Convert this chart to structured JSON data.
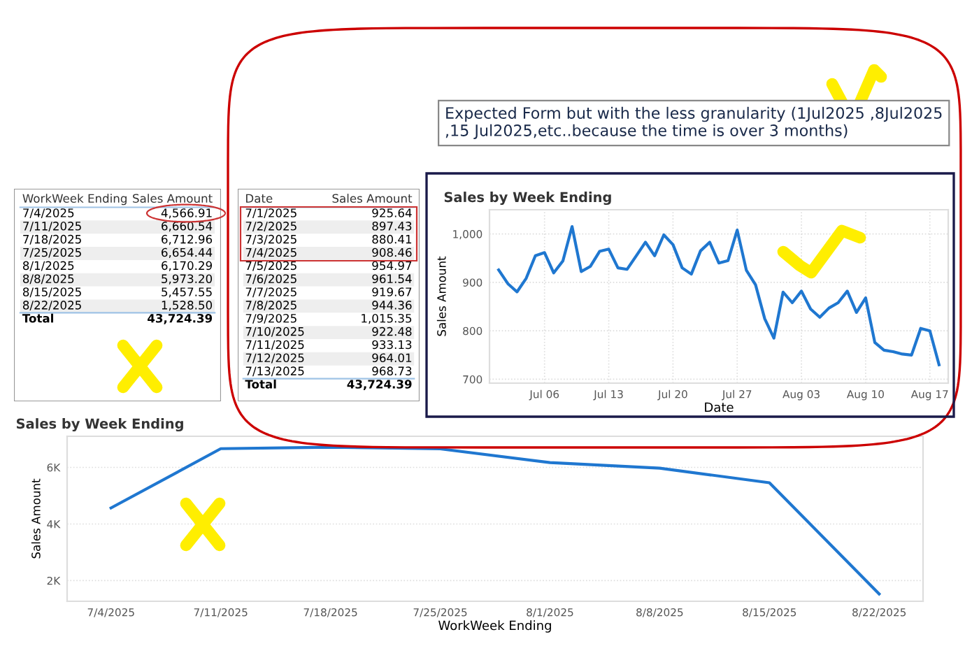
{
  "chart_data": [
    {
      "type": "other",
      "xlabel": "WorkWeek Ending",
      "ylabel": "Sales Amount",
      "categories": [
        "7/4/2025",
        "7/11/2025",
        "7/18/2025",
        "7/25/2025",
        "8/1/2025",
        "8/8/2025",
        "8/15/2025",
        "8/22/2025"
      ],
      "value_labels": [
        "4,566.91",
        "6,660.54",
        "6,712.96",
        "6,654.44",
        "6,170.29",
        "5,973.20",
        "5,457.55",
        "1,528.50"
      ],
      "totals": [
        "Total",
        "43,724.39"
      ]
    },
    {
      "type": "other",
      "xlabel": "Date",
      "ylabel": "Sales Amount",
      "categories": [
        "7/1/2025",
        "7/2/2025",
        "7/3/2025",
        "7/4/2025",
        "7/5/2025",
        "7/6/2025",
        "7/7/2025",
        "7/8/2025",
        "7/9/2025",
        "7/10/2025",
        "7/11/2025",
        "7/12/2025",
        "7/13/2025"
      ],
      "value_labels": [
        "925.64",
        "897.43",
        "880.41",
        "908.46",
        "954.97",
        "961.54",
        "919.67",
        "944.36",
        "1,015.35",
        "922.48",
        "933.13",
        "964.01",
        "968.73"
      ],
      "totals": [
        "Total",
        "43,724.39"
      ]
    },
    {
      "type": "line",
      "title": "Sales by Week Ending",
      "xlabel": "Date",
      "ylabel": "Sales Amount",
      "annotations": [
        "Expected Form but with the less granularity (1Jul2025 ,8Jul2025 ,15 Jul2025,etc..because the time is over 3 months)"
      ],
      "series": [
        {
          "color": "#1f77d0",
          "x": [
            "2025-07-01",
            "2025-07-02",
            "2025-07-03",
            "2025-07-04",
            "2025-07-05",
            "2025-07-06",
            "2025-07-07",
            "2025-07-08",
            "2025-07-09",
            "2025-07-10",
            "2025-07-11",
            "2025-07-12",
            "2025-07-13",
            "2025-07-14",
            "2025-07-15",
            "2025-07-16",
            "2025-07-17",
            "2025-07-18",
            "2025-07-19",
            "2025-07-20",
            "2025-07-21",
            "2025-07-22",
            "2025-07-23",
            "2025-07-24",
            "2025-07-25",
            "2025-07-26",
            "2025-07-27",
            "2025-07-28",
            "2025-07-29",
            "2025-07-30",
            "2025-07-31",
            "2025-08-01",
            "2025-08-02",
            "2025-08-03",
            "2025-08-04",
            "2025-08-05",
            "2025-08-06",
            "2025-08-07",
            "2025-08-08",
            "2025-08-09",
            "2025-08-10",
            "2025-08-11",
            "2025-08-12",
            "2025-08-13",
            "2025-08-14",
            "2025-08-15",
            "2025-08-16",
            "2025-08-17",
            "2025-08-18"
          ],
          "values": [
            925.64,
            897.43,
            880.41,
            908.46,
            954.97,
            961.54,
            919.67,
            944.36,
            1015.35,
            922.48,
            933.13,
            964.01,
            968.73,
            930,
            927,
            955,
            983,
            955,
            998,
            978,
            930,
            917,
            965,
            983,
            940,
            945,
            1008,
            925,
            895,
            825,
            785,
            880,
            858,
            882,
            845,
            828,
            847,
            858,
            882,
            838,
            868,
            776,
            760,
            757,
            752,
            750,
            805,
            800,
            730
          ]
        }
      ],
      "xlim": [
        "2025-06-30",
        "2025-08-19"
      ],
      "xticks": [
        {
          "value": "2025-07-06",
          "label": "Jul 06"
        },
        {
          "value": "2025-07-13",
          "label": "Jul 13"
        },
        {
          "value": "2025-07-20",
          "label": "Jul 20"
        },
        {
          "value": "2025-07-27",
          "label": "Jul 27"
        },
        {
          "value": "2025-08-03",
          "label": "Aug 03"
        },
        {
          "value": "2025-08-10",
          "label": "Aug 10"
        },
        {
          "value": "2025-08-17",
          "label": "Aug 17"
        }
      ],
      "ylim": [
        692,
        1050
      ],
      "yticks": [
        {
          "value": 700,
          "label": "700"
        },
        {
          "value": 800,
          "label": "800"
        },
        {
          "value": 900,
          "label": "900"
        },
        {
          "value": 1000,
          "label": "1,000"
        }
      ],
      "grid": true
    },
    {
      "type": "line",
      "title": "Sales by Week Ending",
      "xlabel": "WorkWeek Ending",
      "ylabel": "Sales Amount",
      "categories": [
        "7/4/2025",
        "7/11/2025",
        "7/18/2025",
        "7/25/2025",
        "8/1/2025",
        "8/8/2025",
        "8/15/2025",
        "8/22/2025"
      ],
      "series": [
        {
          "color": "#1f77d0",
          "values": [
            4566.91,
            6660.54,
            6712.96,
            6654.44,
            6170.29,
            5973.2,
            5457.55,
            1528.5
          ]
        }
      ],
      "ylim": [
        1270,
        7100
      ],
      "yticks": [
        {
          "value": 2000,
          "label": "2K"
        },
        {
          "value": 4000,
          "label": "4K"
        },
        {
          "value": 6000,
          "label": "6K"
        }
      ],
      "grid": "y"
    }
  ]
}
